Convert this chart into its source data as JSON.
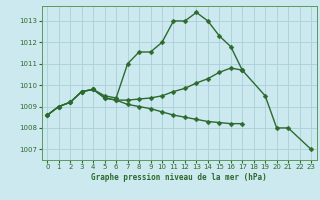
{
  "background_color": "#cce9f0",
  "grid_color": "#aacfd8",
  "line_color": "#2d6a2d",
  "title": "Graphe pression niveau de la mer (hPa)",
  "ylim": [
    1006.5,
    1013.7
  ],
  "xlim": [
    -0.5,
    23.5
  ],
  "yticks": [
    1007,
    1008,
    1009,
    1010,
    1011,
    1012,
    1013
  ],
  "xticks": [
    0,
    1,
    2,
    3,
    4,
    5,
    6,
    7,
    8,
    9,
    10,
    11,
    12,
    13,
    14,
    15,
    16,
    17,
    18,
    19,
    20,
    21,
    22,
    23
  ],
  "series1_x": [
    0,
    1,
    2,
    3,
    4,
    5,
    6,
    7,
    8,
    9,
    10,
    11,
    12,
    13,
    14,
    15,
    16,
    17
  ],
  "series1_y": [
    1008.6,
    1009.0,
    1009.2,
    1009.7,
    1009.8,
    1009.5,
    1009.4,
    1011.0,
    1011.55,
    1011.55,
    1012.0,
    1013.0,
    1013.0,
    1013.4,
    1013.0,
    1012.3,
    1011.8,
    1010.7
  ],
  "series2_x": [
    0,
    1,
    2,
    3,
    4,
    5,
    6,
    7,
    8,
    9,
    10,
    11,
    12,
    13,
    14,
    15,
    16,
    17
  ],
  "series2_y": [
    1008.6,
    1009.0,
    1009.2,
    1009.7,
    1009.8,
    1009.4,
    1009.3,
    1009.3,
    1009.35,
    1009.4,
    1009.5,
    1009.7,
    1009.85,
    1010.1,
    1010.3,
    1010.6,
    1010.8,
    1010.7
  ],
  "series3_x": [
    0,
    1,
    2,
    3,
    4,
    5,
    6,
    7,
    8,
    9,
    10,
    11,
    12,
    13,
    14,
    15,
    16,
    17
  ],
  "series3_y": [
    1008.6,
    1009.0,
    1009.2,
    1009.7,
    1009.8,
    1009.4,
    1009.3,
    1009.1,
    1009.0,
    1008.9,
    1008.75,
    1008.6,
    1008.5,
    1008.4,
    1008.3,
    1008.25,
    1008.2,
    1008.2
  ],
  "series4_x": [
    17,
    19,
    20,
    21,
    23
  ],
  "series4_y": [
    1010.7,
    1009.5,
    1008.0,
    1008.0,
    1007.0
  ],
  "marker": "D",
  "markersize": 2.5,
  "linewidth": 1.0,
  "tick_fontsize": 5,
  "label_fontsize": 5.5
}
